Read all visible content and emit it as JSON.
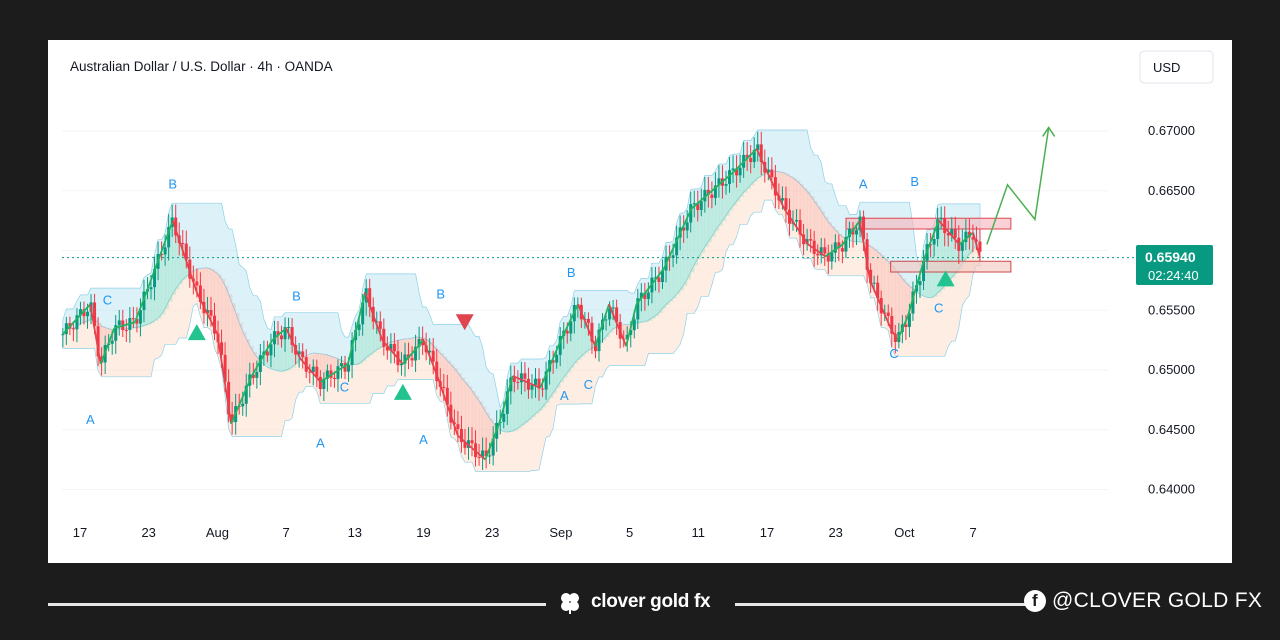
{
  "chart": {
    "title": "Australian Dollar / U.S. Dollar · 4h · OANDA",
    "currency_button": "USD",
    "last_price_label": "0.65940",
    "countdown_label": "02:24:40",
    "pattern_labels": [
      "A",
      "B",
      "C",
      "A",
      "B",
      "C",
      "A",
      "B",
      "C",
      "A",
      "B",
      "C",
      "A",
      "B",
      "C"
    ]
  },
  "chart_data": {
    "type": "candlestick",
    "title": "Australian Dollar / U.S. Dollar · 4h · OANDA",
    "ylim": [
      0.6375,
      0.6715
    ],
    "y_ticks": [
      0.64,
      0.645,
      0.65,
      0.655,
      0.66,
      0.665,
      0.67
    ],
    "y_tick_labels": [
      "0.64000",
      "0.64500",
      "0.65000",
      "0.65500",
      "0.66000",
      "0.66500",
      "0.67000"
    ],
    "x_tick_labels": [
      "17",
      "23",
      "Aug",
      "7",
      "13",
      "19",
      "23",
      "Sep",
      "5",
      "11",
      "17",
      "23",
      "Oct",
      "7"
    ],
    "last_price": 0.6594,
    "price_path": {
      "x_ticks": [
        0,
        1,
        2,
        3,
        4,
        5,
        6,
        7,
        8,
        9,
        10,
        11,
        12,
        13
      ],
      "points": [
        [
          -0.25,
          0.653
        ],
        [
          0.15,
          0.6555
        ],
        [
          0.3,
          0.6505
        ],
        [
          0.5,
          0.6535
        ],
        [
          0.8,
          0.654
        ],
        [
          1.0,
          0.657
        ],
        [
          1.35,
          0.6625
        ],
        [
          1.7,
          0.6565
        ],
        [
          2.0,
          0.653
        ],
        [
          2.2,
          0.6455
        ],
        [
          2.5,
          0.6495
        ],
        [
          2.8,
          0.6525
        ],
        [
          3.0,
          0.6535
        ],
        [
          3.2,
          0.651
        ],
        [
          3.5,
          0.649
        ],
        [
          3.9,
          0.6505
        ],
        [
          4.15,
          0.6565
        ],
        [
          4.4,
          0.6525
        ],
        [
          4.7,
          0.6505
        ],
        [
          5.0,
          0.6525
        ],
        [
          5.2,
          0.6495
        ],
        [
          5.5,
          0.6445
        ],
        [
          5.9,
          0.6425
        ],
        [
          6.1,
          0.6455
        ],
        [
          6.3,
          0.6495
        ],
        [
          6.7,
          0.6485
        ],
        [
          7.0,
          0.6525
        ],
        [
          7.25,
          0.6555
        ],
        [
          7.5,
          0.652
        ],
        [
          7.7,
          0.6555
        ],
        [
          7.95,
          0.652
        ],
        [
          8.1,
          0.6555
        ],
        [
          8.5,
          0.6585
        ],
        [
          8.9,
          0.6635
        ],
        [
          9.5,
          0.6665
        ],
        [
          9.85,
          0.6685
        ],
        [
          10.25,
          0.6635
        ],
        [
          10.6,
          0.6605
        ],
        [
          10.85,
          0.6595
        ],
        [
          11.1,
          0.6605
        ],
        [
          11.35,
          0.6625
        ],
        [
          11.5,
          0.6575
        ],
        [
          11.8,
          0.6535
        ],
        [
          11.9,
          0.6525
        ],
        [
          12.05,
          0.6545
        ],
        [
          12.3,
          0.6595
        ],
        [
          12.5,
          0.6625
        ],
        [
          12.8,
          0.6605
        ],
        [
          13.0,
          0.6615
        ],
        [
          13.1,
          0.6594
        ]
      ]
    },
    "zones": [
      {
        "name": "resistance",
        "y0": 0.6618,
        "y1": 0.6627
      },
      {
        "name": "support",
        "y0": 0.6582,
        "y1": 0.6591
      }
    ],
    "projection": [
      [
        13.2,
        0.6605
      ],
      [
        13.5,
        0.6655
      ],
      [
        13.9,
        0.6626
      ],
      [
        14.1,
        0.6703
      ]
    ]
  }
}
